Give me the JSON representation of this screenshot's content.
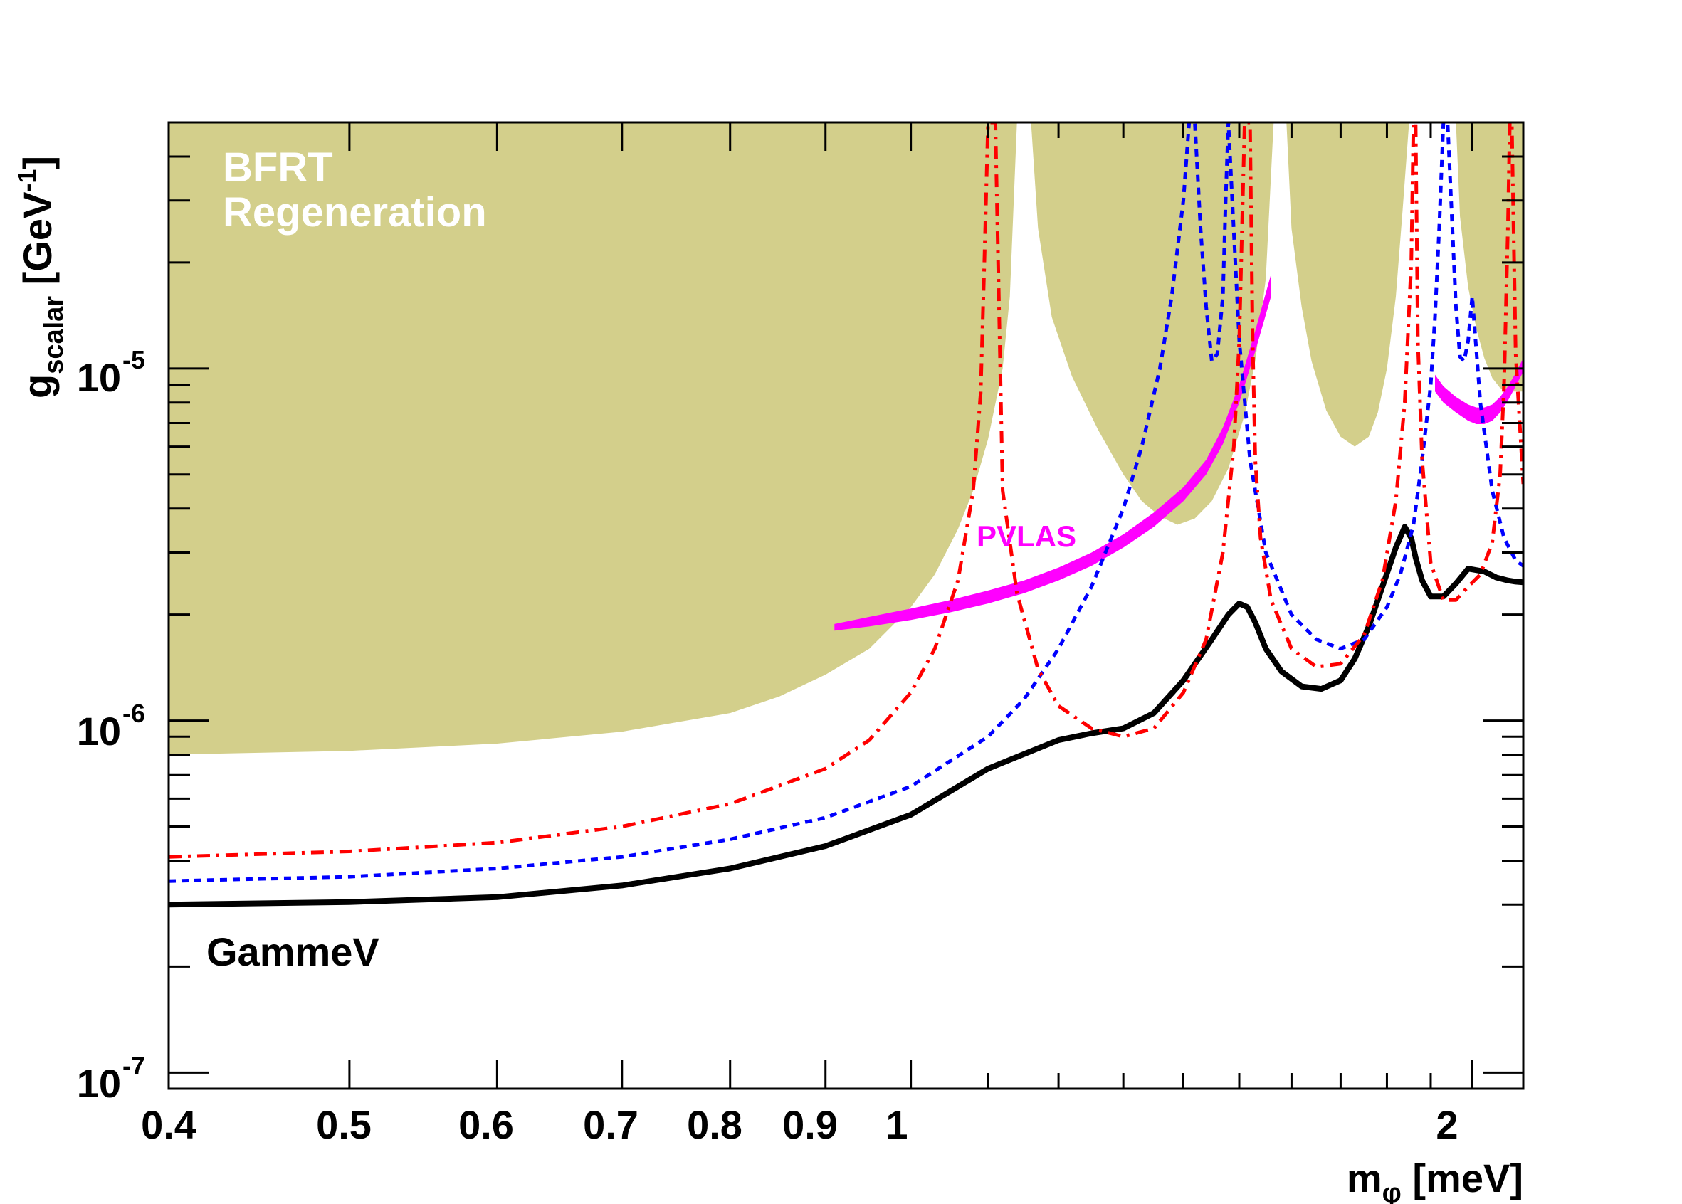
{
  "chart_data": {
    "type": "line",
    "title": "",
    "xlabel_main": "m",
    "xlabel_sub": "φ",
    "xlabel_unit": " [meV]",
    "ylabel_main": "g",
    "ylabel_sub": "scalar",
    "ylabel_unit_pre": " [GeV",
    "ylabel_unit_sup": "-1",
    "ylabel_unit_post": "]",
    "x_scale": "log",
    "y_scale": "log",
    "xlim": [
      0.4,
      2.13
    ],
    "ylim": [
      9e-08,
      5e-05
    ],
    "x_ticks": [
      {
        "value": 0.4,
        "label": "0.4"
      },
      {
        "value": 0.5,
        "label": "0.5"
      },
      {
        "value": 0.6,
        "label": "0.6"
      },
      {
        "value": 0.7,
        "label": "0.7"
      },
      {
        "value": 0.8,
        "label": "0.8"
      },
      {
        "value": 0.9,
        "label": "0.9"
      },
      {
        "value": 1.0,
        "label": "1"
      },
      {
        "value": 2.0,
        "label": "2"
      }
    ],
    "x_minor_ticks": [
      1.1,
      1.2,
      1.3,
      1.4,
      1.5,
      1.6,
      1.7,
      1.8,
      1.9
    ],
    "y_ticks": [
      {
        "value": 1e-07,
        "mantissa": "10",
        "exponent": "-7"
      },
      {
        "value": 1e-06,
        "mantissa": "10",
        "exponent": "-6"
      },
      {
        "value": 1e-05,
        "mantissa": "10",
        "exponent": "-5"
      }
    ],
    "y_minor_ticks": [
      2e-07,
      3e-07,
      4e-07,
      5e-07,
      6e-07,
      7e-07,
      8e-07,
      9e-07,
      2e-06,
      3e-06,
      4e-06,
      5e-06,
      6e-06,
      7e-06,
      8e-06,
      9e-06,
      2e-05,
      3e-05,
      4e-05
    ],
    "grid": false,
    "annotations": [
      {
        "id": "bfrt-line1",
        "text": "BFRT",
        "color": "#ffffff"
      },
      {
        "id": "bfrt-line2",
        "text": "Regeneration",
        "color": "#ffffff"
      },
      {
        "id": "pvlas",
        "text": "PVLAS",
        "color": "#ff00ff"
      },
      {
        "id": "gammev",
        "text": "GammeV",
        "color": "#000000"
      }
    ],
    "regions": [
      {
        "name": "BFRT Regeneration",
        "color": "#d3cf8b",
        "lobes": [
          {
            "x": [
              0.4,
              0.5,
              0.6,
              0.7,
              0.8,
              0.85,
              0.9,
              0.95,
              1.0,
              1.03,
              1.06,
              1.08,
              1.1,
              1.12,
              1.13,
              1.14
            ],
            "y": [
              8e-07,
              8.2e-07,
              8.6e-07,
              9.3e-07,
              1.05e-06,
              1.17e-06,
              1.35e-06,
              1.6e-06,
              2.1e-06,
              2.6e-06,
              3.5e-06,
              4.5e-06,
              6.3e-06,
              1e-05,
              1.6e-05,
              5e-05
            ]
          },
          {
            "x": [
              1.16,
              1.17,
              1.19,
              1.22,
              1.26,
              1.3,
              1.33,
              1.36,
              1.39,
              1.42,
              1.45,
              1.48,
              1.51,
              1.53,
              1.55,
              1.565
            ],
            "y": [
              5e-05,
              2.5e-05,
              1.4e-05,
              9.5e-06,
              6.7e-06,
              5e-06,
              4.2e-06,
              3.8e-06,
              3.6e-06,
              3.75e-06,
              4.2e-06,
              5.2e-06,
              7.4e-06,
              1.05e-05,
              1.8e-05,
              5e-05
            ]
          },
          {
            "x": [
              1.59,
              1.6,
              1.62,
              1.64,
              1.67,
              1.7,
              1.73,
              1.76,
              1.78,
              1.8,
              1.82,
              1.835,
              1.85
            ],
            "y": [
              5e-05,
              2.5e-05,
              1.5e-05,
              1.05e-05,
              7.6e-06,
              6.4e-06,
              6e-06,
              6.4e-06,
              7.5e-06,
              1e-05,
              1.6e-05,
              2.8e-05,
              5e-05
            ]
          },
          {
            "x": [
              1.96,
              1.97,
              1.99,
              2.01,
              2.03,
              2.05,
              2.07,
              2.09,
              2.11,
              2.13
            ],
            "y": [
              5e-05,
              2.7e-05,
              1.7e-05,
              1.3e-05,
              1.07e-05,
              9.4e-06,
              8.8e-06,
              8.6e-06,
              8.6e-06,
              8.6e-06
            ]
          }
        ]
      },
      {
        "name": "PVLAS",
        "color": "#ff00ff",
        "bands": [
          {
            "x": [
              0.91,
              0.95,
              1.0,
              1.05,
              1.1,
              1.15,
              1.2,
              1.25,
              1.3,
              1.35,
              1.4,
              1.44,
              1.47,
              1.5,
              1.53,
              1.56
            ],
            "y_low": [
              1.8e-06,
              1.85e-06,
              1.93e-06,
              2.03e-06,
              2.15e-06,
              2.3e-06,
              2.5e-06,
              2.75e-06,
              3.1e-06,
              3.55e-06,
              4.2e-06,
              5e-06,
              6.1e-06,
              8e-06,
              1.12e-05,
              1.6e-05
            ],
            "y_high": [
              1.88e-06,
              1.97e-06,
              2.08e-06,
              2.2e-06,
              2.34e-06,
              2.5e-06,
              2.72e-06,
              3e-06,
              3.38e-06,
              3.9e-06,
              4.6e-06,
              5.5e-06,
              6.8e-06,
              9e-06,
              1.28e-05,
              1.85e-05
            ]
          },
          {
            "x": [
              1.91,
              1.93,
              1.96,
              1.99,
              2.01,
              2.03,
              2.05,
              2.07,
              2.09,
              2.11,
              2.13
            ],
            "y_low": [
              8.6e-06,
              8e-06,
              7.5e-06,
              7.1e-06,
              6.95e-06,
              6.95e-06,
              7.1e-06,
              7.5e-06,
              8.1e-06,
              8.9e-06,
              9.8e-06
            ],
            "y_high": [
              9.6e-06,
              8.9e-06,
              8.3e-06,
              7.9e-06,
              7.75e-06,
              7.75e-06,
              7.9e-06,
              8.3e-06,
              8.9e-06,
              9.7e-06,
              1.07e-05
            ]
          }
        ]
      }
    ],
    "series": [
      {
        "color": "#000000",
        "style": "solid",
        "x": [
          0.4,
          0.5,
          0.6,
          0.7,
          0.8,
          0.9,
          1.0,
          1.1,
          1.2,
          1.25,
          1.3,
          1.35,
          1.4,
          1.45,
          1.48,
          1.5,
          1.515,
          1.53,
          1.55,
          1.58,
          1.62,
          1.66,
          1.7,
          1.73,
          1.76,
          1.79,
          1.82,
          1.84,
          1.855,
          1.865,
          1.88,
          1.9,
          1.93,
          1.96,
          1.99,
          2.03,
          2.06,
          2.09,
          2.11,
          2.13
        ],
        "y": [
          3e-07,
          3.05e-07,
          3.15e-07,
          3.4e-07,
          3.8e-07,
          4.4e-07,
          5.4e-07,
          7.3e-07,
          8.8e-07,
          9.2e-07,
          9.5e-07,
          1.05e-06,
          1.3e-06,
          1.7e-06,
          2e-06,
          2.15e-06,
          2.1e-06,
          1.9e-06,
          1.6e-06,
          1.38e-06,
          1.25e-06,
          1.23e-06,
          1.3e-06,
          1.5e-06,
          1.85e-06,
          2.4e-06,
          3.1e-06,
          3.55e-06,
          3.3e-06,
          2.9e-06,
          2.5e-06,
          2.25e-06,
          2.25e-06,
          2.45e-06,
          2.7e-06,
          2.65e-06,
          2.55e-06,
          2.5e-06,
          2.48e-06,
          2.47e-06
        ]
      },
      {
        "color": "#0000ff",
        "style": "dotted",
        "x": [
          0.4,
          0.5,
          0.6,
          0.7,
          0.8,
          0.9,
          1.0,
          1.1,
          1.15,
          1.2,
          1.25,
          1.3,
          1.33,
          1.36,
          1.38,
          1.4,
          1.41,
          1.42,
          1.43,
          1.44,
          1.45,
          1.46,
          1.47,
          1.475,
          1.48,
          1.5,
          1.52,
          1.55,
          1.6,
          1.65,
          1.7,
          1.75,
          1.8,
          1.83,
          1.86,
          1.88,
          1.9,
          1.91,
          1.92,
          1.93,
          1.94,
          1.96,
          1.97,
          1.98,
          1.99,
          2.0,
          2.02,
          2.05,
          2.08,
          2.11,
          2.13
        ],
        "y": [
          3.5e-07,
          3.6e-07,
          3.8e-07,
          4.1e-07,
          4.6e-07,
          5.3e-07,
          6.5e-07,
          9e-07,
          1.15e-06,
          1.6e-06,
          2.4e-06,
          4e-06,
          6e-06,
          1e-05,
          1.6e-05,
          3e-05,
          5e-05,
          5e-05,
          2.5e-05,
          1.5e-05,
          1.05e-05,
          1.1e-05,
          1.6e-05,
          3e-05,
          5e-05,
          1.2e-05,
          5.5e-06,
          3e-06,
          2e-06,
          1.7e-06,
          1.6e-06,
          1.7e-06,
          2.1e-06,
          2.6e-06,
          3.6e-06,
          5.5e-06,
          9e-06,
          1.4e-05,
          2.5e-05,
          5e-05,
          5e-05,
          1.5e-05,
          1.08e-05,
          1.05e-05,
          1.2e-05,
          1.6e-05,
          8e-06,
          4.5e-06,
          3.3e-06,
          2.85e-06,
          2.75e-06
        ]
      },
      {
        "color": "#ff0000",
        "style": "dashdot",
        "x": [
          0.4,
          0.5,
          0.6,
          0.7,
          0.8,
          0.9,
          0.95,
          1.0,
          1.03,
          1.06,
          1.08,
          1.09,
          1.095,
          1.1,
          1.11,
          1.12,
          1.14,
          1.17,
          1.2,
          1.25,
          1.3,
          1.35,
          1.4,
          1.44,
          1.47,
          1.49,
          1.5,
          1.51,
          1.52,
          1.525,
          1.53,
          1.54,
          1.56,
          1.6,
          1.65,
          1.7,
          1.75,
          1.79,
          1.82,
          1.84,
          1.855,
          1.86,
          1.865,
          1.87,
          1.88,
          1.9,
          1.93,
          1.96,
          1.99,
          2.02,
          2.05,
          2.07,
          2.08,
          2.09,
          2.095,
          2.1,
          2.11,
          2.13
        ],
        "y": [
          4.1e-07,
          4.25e-07,
          4.5e-07,
          5e-07,
          5.8e-07,
          7.3e-07,
          8.8e-07,
          1.2e-06,
          1.6e-06,
          2.5e-06,
          4.5e-06,
          8.5e-06,
          2e-05,
          5e-05,
          5e-05,
          4.5e-06,
          2.3e-06,
          1.4e-06,
          1.1e-06,
          9.5e-07,
          9e-07,
          9.5e-07,
          1.2e-06,
          1.7e-06,
          3e-06,
          6e-06,
          1.2e-05,
          5e-05,
          5e-05,
          1.2e-05,
          5.5e-06,
          3.3e-06,
          2.2e-06,
          1.6e-06,
          1.42e-06,
          1.45e-06,
          1.75e-06,
          2.5e-06,
          4.2e-06,
          8e-06,
          2e-05,
          5e-05,
          5e-05,
          1.2e-05,
          5.5e-06,
          2.8e-06,
          2.2e-06,
          2.2e-06,
          2.4e-06,
          2.6e-06,
          3.2e-06,
          5e-06,
          9e-06,
          2.5e-05,
          5e-05,
          5e-05,
          1.1e-05,
          4.7e-06
        ]
      }
    ]
  }
}
